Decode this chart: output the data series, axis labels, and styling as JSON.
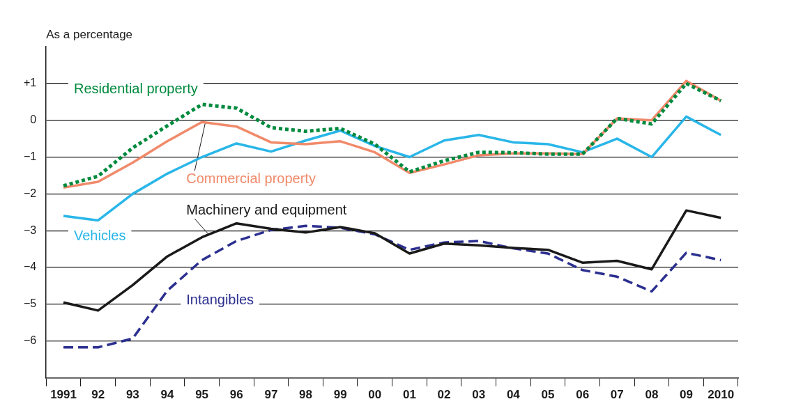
{
  "chart_data": {
    "type": "line",
    "ylabel": "As a percentage",
    "categories": [
      "1991",
      "92",
      "93",
      "94",
      "95",
      "96",
      "97",
      "98",
      "99",
      "00",
      "01",
      "02",
      "03",
      "04",
      "05",
      "06",
      "07",
      "08",
      "09",
      "2010"
    ],
    "ylim": [
      -7,
      2
    ],
    "yticks": [
      {
        "value": 1,
        "label": "+1"
      },
      0,
      {
        "value": -1,
        "label": "−1"
      },
      {
        "value": -2,
        "label": "−2"
      },
      {
        "value": -3,
        "label": "−3"
      },
      {
        "value": -4,
        "label": "−4"
      },
      {
        "value": -5,
        "label": "−5"
      },
      {
        "value": -6,
        "label": "−6"
      }
    ],
    "grid": "y",
    "legend": false,
    "marker": "none",
    "series": [
      {
        "name": "Residential property",
        "color": "#008a3e",
        "line_style": "dotted",
        "values": [
          -1.78,
          -1.52,
          -0.75,
          -0.15,
          0.43,
          0.33,
          -0.2,
          -0.3,
          -0.22,
          -0.65,
          -1.4,
          -1.1,
          -0.87,
          -0.88,
          -0.92,
          -0.92,
          0.05,
          -0.1,
          1.0,
          0.53
        ]
      },
      {
        "name": "Commercial property",
        "color": "#f08a6a",
        "line_style": "solid",
        "values": [
          -1.83,
          -1.67,
          -1.15,
          -0.57,
          -0.05,
          -0.17,
          -0.6,
          -0.65,
          -0.57,
          -0.87,
          -1.43,
          -1.2,
          -0.95,
          -0.9,
          -0.9,
          -0.92,
          0.05,
          0.0,
          1.07,
          0.53
        ]
      },
      {
        "name": "Vehicles",
        "color": "#29b6e8",
        "line_style": "solid",
        "values": [
          -2.6,
          -2.72,
          -2.0,
          -1.45,
          -1.0,
          -0.63,
          -0.85,
          -0.55,
          -0.28,
          -0.7,
          -1.0,
          -0.55,
          -0.4,
          -0.6,
          -0.65,
          -0.87,
          -0.5,
          -1.0,
          0.1,
          -0.4
        ]
      },
      {
        "name": "Machinery and equipment",
        "color": "#1a1a1a",
        "line_style": "solid",
        "values": [
          -4.95,
          -5.17,
          -4.48,
          -3.7,
          -3.18,
          -2.8,
          -2.95,
          -3.05,
          -2.9,
          -3.07,
          -3.62,
          -3.35,
          -3.4,
          -3.47,
          -3.52,
          -3.87,
          -3.82,
          -4.05,
          -2.45,
          -2.65
        ]
      },
      {
        "name": "Intangibles",
        "color": "#2b2f8f",
        "line_style": "dashed",
        "values": [
          -6.17,
          -6.17,
          -5.93,
          -4.63,
          -3.8,
          -3.28,
          -2.98,
          -2.87,
          -2.92,
          -3.1,
          -3.52,
          -3.32,
          -3.28,
          -3.48,
          -3.62,
          -4.07,
          -4.25,
          -4.65,
          -3.6,
          -3.8
        ]
      }
    ]
  }
}
